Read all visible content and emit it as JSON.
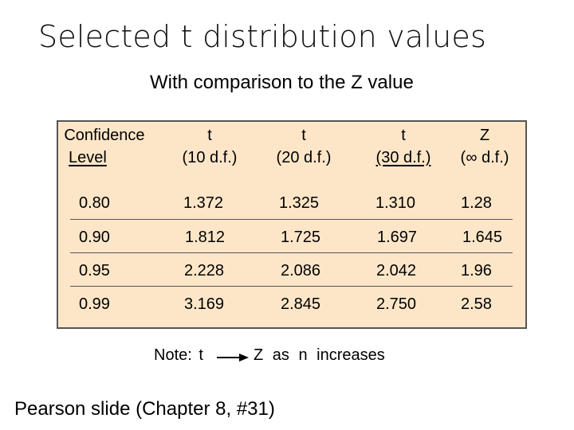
{
  "title": "Selected t distribution values",
  "subtitle": "With comparison to the Z value",
  "table": {
    "headers": [
      {
        "line1": "Confidence",
        "line2": "Level"
      },
      {
        "line1": "t",
        "line2": "(10 d.f.)"
      },
      {
        "line1": "t",
        "line2": "(20 d.f.)"
      },
      {
        "line1": "t",
        "line2": "(30 d.f.)"
      },
      {
        "line1": "Z",
        "line2": "(∞ d.f.)"
      }
    ],
    "rows": [
      [
        "0.80",
        "1.372",
        "1.325",
        "1.310",
        "1.28"
      ],
      [
        "0.90",
        "1.812",
        "1.725",
        "1.697",
        "1.645"
      ],
      [
        "0.95",
        "2.228",
        "2.086",
        "2.042",
        "1.96"
      ],
      [
        "0.99",
        "3.169",
        "2.845",
        "2.750",
        "2.58"
      ]
    ]
  },
  "note": {
    "prefix": "Note:  t",
    "suffix": "Z  as  n  increases",
    "arrow_icon": "arrow-right-icon"
  },
  "footer": "Pearson slide (Chapter 8, #31)",
  "colors": {
    "panel_bg": "#fde6c8",
    "panel_border": "#555555"
  }
}
